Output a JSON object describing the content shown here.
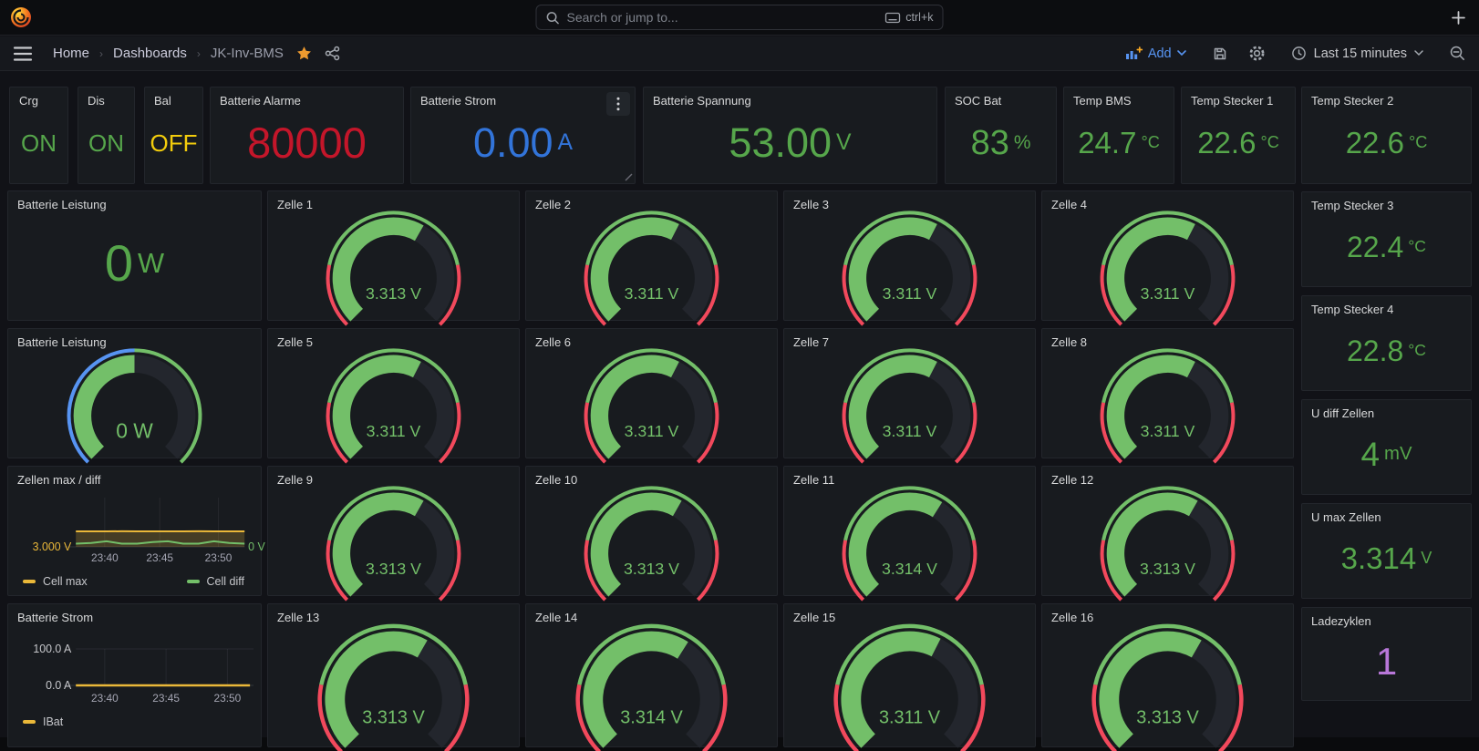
{
  "chrome": {
    "search_placeholder": "Search or jump to...",
    "search_shortcut": "ctrl+k",
    "breadcrumbs": {
      "home": "Home",
      "dashboards": "Dashboards",
      "current": "JK-Inv-BMS"
    },
    "add_label": "Add",
    "time_range_label": "Last 15 minutes"
  },
  "stats": {
    "crg": {
      "title": "Crg",
      "value": "ON"
    },
    "dis": {
      "title": "Dis",
      "value": "ON"
    },
    "bal": {
      "title": "Bal",
      "value": "OFF"
    },
    "alarme": {
      "title": "Batterie Alarme",
      "value": "80000"
    },
    "strom": {
      "title": "Batterie Strom",
      "value": "0.00",
      "unit": "A"
    },
    "spannung": {
      "title": "Batterie Spannung",
      "value": "53.00",
      "unit": "V"
    },
    "soc": {
      "title": "SOC Bat",
      "value": "83",
      "unit": "%"
    },
    "temp_bms": {
      "title": "Temp BMS",
      "value": "24.7",
      "unit": "°C"
    },
    "ts1": {
      "title": "Temp Stecker 1",
      "value": "22.6",
      "unit": "°C"
    },
    "ts2": {
      "title": "Temp Stecker 2",
      "value": "22.6",
      "unit": "°C"
    },
    "ts3": {
      "title": "Temp Stecker 3",
      "value": "22.4",
      "unit": "°C"
    },
    "ts4": {
      "title": "Temp Stecker 4",
      "value": "22.8",
      "unit": "°C"
    },
    "leistung": {
      "title": "Batterie Leistung",
      "value": "0",
      "unit": "W"
    },
    "udiff": {
      "title": "U diff Zellen",
      "value": "4",
      "unit": "mV"
    },
    "umax": {
      "title": "U max Zellen",
      "value": "3.314",
      "unit": "V"
    },
    "lade": {
      "title": "Ladezyklen",
      "value": "1"
    }
  },
  "gauges": {
    "bar_color": "#73BF69",
    "track_color": "#23262d",
    "text_color": "#73BF69",
    "ring_default": [
      {
        "c": "#F2495C",
        "a": 0.0,
        "b": 0.21
      },
      {
        "c": "#73BF69",
        "a": 0.21,
        "b": 0.79
      },
      {
        "c": "#F2495C",
        "a": 0.79,
        "b": 1.0
      }
    ],
    "items": [
      {
        "title": "Zelle 1",
        "value": "3.313 V",
        "fill": 0.61
      },
      {
        "title": "Zelle 2",
        "value": "3.311 V",
        "fill": 0.6
      },
      {
        "title": "Zelle 3",
        "value": "3.311 V",
        "fill": 0.6
      },
      {
        "title": "Zelle 4",
        "value": "3.311 V",
        "fill": 0.6
      },
      {
        "title": "Zelle 5",
        "value": "3.311 V",
        "fill": 0.6
      },
      {
        "title": "Zelle 6",
        "value": "3.311 V",
        "fill": 0.6
      },
      {
        "title": "Zelle 7",
        "value": "3.311 V",
        "fill": 0.6
      },
      {
        "title": "Zelle 8",
        "value": "3.311 V",
        "fill": 0.6
      },
      {
        "title": "Zelle 9",
        "value": "3.313 V",
        "fill": 0.61
      },
      {
        "title": "Zelle 10",
        "value": "3.313 V",
        "fill": 0.61
      },
      {
        "title": "Zelle 11",
        "value": "3.314 V",
        "fill": 0.62
      },
      {
        "title": "Zelle 12",
        "value": "3.313 V",
        "fill": 0.61
      },
      {
        "title": "Zelle 13",
        "value": "3.313 V",
        "fill": 0.61
      },
      {
        "title": "Zelle 14",
        "value": "3.314 V",
        "fill": 0.62
      },
      {
        "title": "Zelle 15",
        "value": "3.311 V",
        "fill": 0.6
      },
      {
        "title": "Zelle 16",
        "value": "3.313 V",
        "fill": 0.61
      }
    ]
  },
  "power_gauge": {
    "title": "Batterie Leistung",
    "value": "0 W",
    "fill": 0.5,
    "ring": [
      {
        "c": "#5794F2",
        "a": 0.0,
        "b": 0.5
      },
      {
        "c": "#73BF69",
        "a": 0.5,
        "b": 1.0
      }
    ]
  },
  "chart_data": [
    {
      "id": "zellen_max_diff",
      "type": "line",
      "title": "Zellen max / diff",
      "x_ticks": [
        "23:40",
        "23:45",
        "23:50"
      ],
      "left_axis": {
        "tick": "3.000 V",
        "min": 3.0,
        "max_est": 3.95,
        "color": "#EAB839"
      },
      "right_axis": {
        "tick": "0 V",
        "min": 0.0,
        "max_est": 0.06,
        "color": "#73BF69"
      },
      "grid": true,
      "legend_position": "bottom",
      "series": [
        {
          "name": "Cell max",
          "color": "#EAB839",
          "axis": "left",
          "fill_opacity": 0.22,
          "values": [
            3.31,
            3.311,
            3.31,
            3.312,
            3.31,
            3.311,
            3.31,
            3.31,
            3.312,
            3.31,
            3.311,
            3.31
          ]
        },
        {
          "name": "Cell diff",
          "color": "#73BF69",
          "axis": "right",
          "fill_opacity": 0,
          "values": [
            0.004,
            0.005,
            0.007,
            0.004,
            0.004,
            0.006,
            0.007,
            0.004,
            0.004,
            0.007,
            0.005,
            0.004
          ]
        }
      ]
    },
    {
      "id": "batterie_strom",
      "type": "line",
      "title": "Batterie Strom",
      "x_ticks": [
        "23:40",
        "23:45",
        "23:50"
      ],
      "left_axis": {
        "ticks": [
          "100.0 A",
          "0.0 A"
        ],
        "min": 0,
        "max": 100,
        "color": "#c7c8cc"
      },
      "grid": true,
      "legend_position": "bottom",
      "series": [
        {
          "name": "IBat",
          "color": "#EAB839",
          "axis": "left",
          "fill_opacity": 0,
          "values": [
            0,
            0,
            0,
            0,
            0,
            0,
            0,
            0,
            0,
            0,
            0,
            0
          ]
        }
      ]
    }
  ]
}
